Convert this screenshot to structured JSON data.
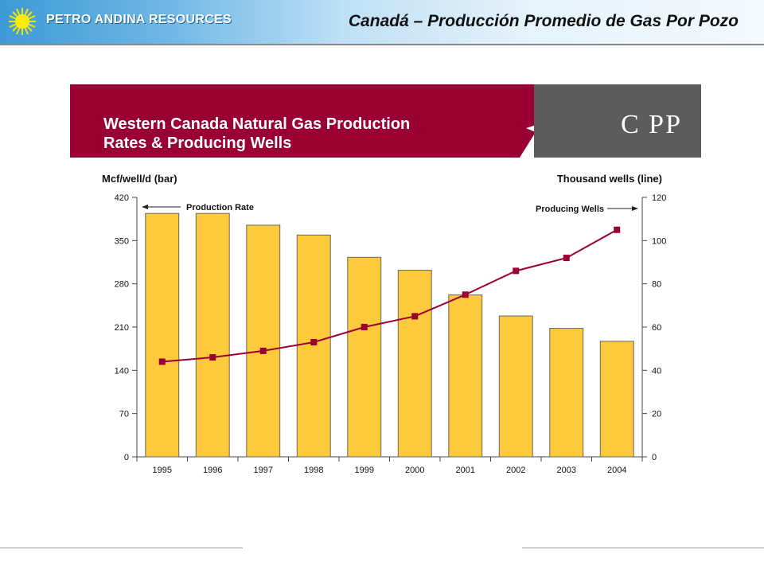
{
  "header": {
    "brand": "PETRO ANDINA RESOURCES",
    "title": "Canadá – Producción Promedio de Gas Por Pozo",
    "brand_icon": "sun-icon"
  },
  "banner": {
    "title_line1": "Western Canada Natural Gas Production",
    "title_line2": "Rates & Producing Wells",
    "logo_text": "C PP",
    "logo_icon": "maple-leaf-icon"
  },
  "colors": {
    "bar_fill": "#fcca3a",
    "bar_stroke": "#666666",
    "line": "#9b0033",
    "banner": "#9b0033",
    "banner_grey": "#5c5c5c"
  },
  "chart_data": {
    "type": "bar",
    "categories": [
      "1995",
      "1996",
      "1997",
      "1998",
      "1999",
      "2000",
      "2001",
      "2002",
      "2003",
      "2004"
    ],
    "series": [
      {
        "type": "bar",
        "axis": "left",
        "values": [
          394,
          394,
          375,
          359,
          323,
          302,
          262,
          228,
          208,
          187
        ]
      },
      {
        "type": "line",
        "axis": "right",
        "values": [
          44,
          46,
          49,
          53,
          60,
          65,
          75,
          86,
          92,
          105
        ]
      }
    ],
    "y_left": {
      "label": "Mcf/well/d (bar)",
      "ticks": [
        "0",
        "70",
        "140",
        "210",
        "280",
        "350",
        "420"
      ],
      "min": 0,
      "max": 420
    },
    "y_right": {
      "label": "Thousand wells (line)",
      "ticks": [
        "0",
        "20",
        "40",
        "60",
        "80",
        "100",
        "120"
      ],
      "min": 0,
      "max": 120
    },
    "annotations": {
      "left": "Production Rate",
      "right": "Producing Wells"
    },
    "grid": false
  }
}
